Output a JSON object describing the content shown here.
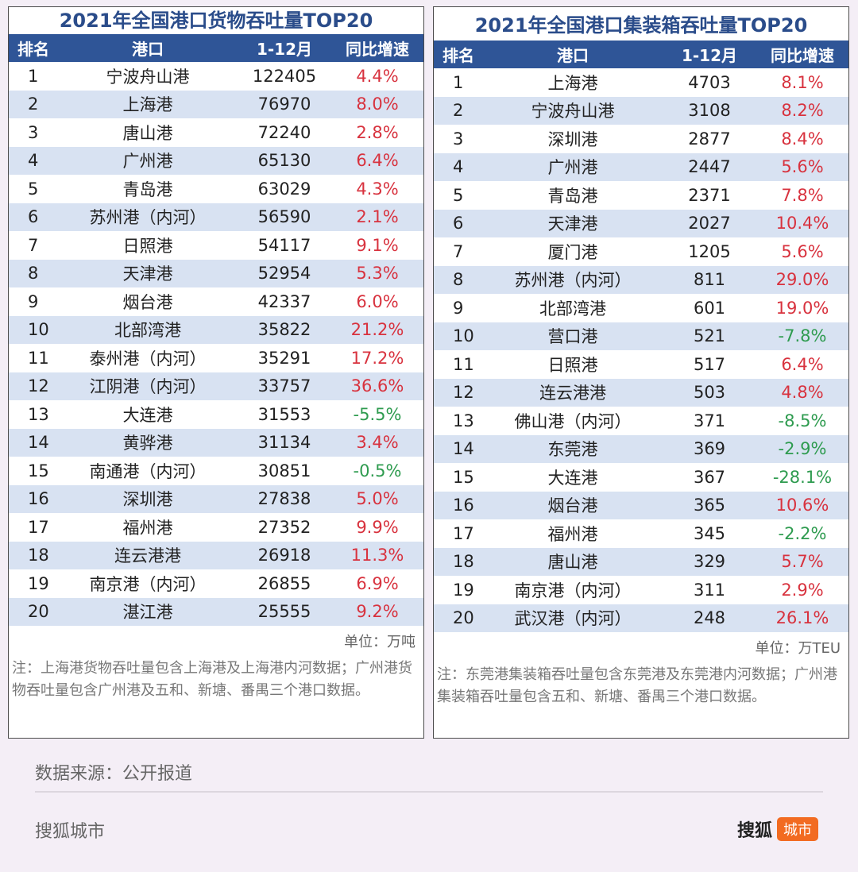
{
  "left": {
    "title": "2021年全国港口货物吞吐量TOP20",
    "headers": [
      "排名",
      "港口",
      "1-12月",
      "同比增速"
    ],
    "rows": [
      [
        "1",
        "宁波舟山港",
        "122405",
        "4.4%"
      ],
      [
        "2",
        "上海港",
        "76970",
        "8.0%"
      ],
      [
        "3",
        "唐山港",
        "72240",
        "2.8%"
      ],
      [
        "4",
        "广州港",
        "65130",
        "6.4%"
      ],
      [
        "5",
        "青岛港",
        "63029",
        "4.3%"
      ],
      [
        "6",
        "苏州港（内河）",
        "56590",
        "2.1%"
      ],
      [
        "7",
        "日照港",
        "54117",
        "9.1%"
      ],
      [
        "8",
        "天津港",
        "52954",
        "5.3%"
      ],
      [
        "9",
        "烟台港",
        "42337",
        "6.0%"
      ],
      [
        "10",
        "北部湾港",
        "35822",
        "21.2%"
      ],
      [
        "11",
        "泰州港（内河）",
        "35291",
        "17.2%"
      ],
      [
        "12",
        "江阴港（内河）",
        "33757",
        "36.6%"
      ],
      [
        "13",
        "大连港",
        "31553",
        "-5.5%"
      ],
      [
        "14",
        "黄骅港",
        "31134",
        "3.4%"
      ],
      [
        "15",
        "南通港（内河）",
        "30851",
        "-0.5%"
      ],
      [
        "16",
        "深圳港",
        "27838",
        "5.0%"
      ],
      [
        "17",
        "福州港",
        "27352",
        "9.9%"
      ],
      [
        "18",
        "连云港港",
        "26918",
        "11.3%"
      ],
      [
        "19",
        "南京港（内河）",
        "26855",
        "6.9%"
      ],
      [
        "20",
        "湛江港",
        "25555",
        "9.2%"
      ]
    ],
    "unit": "单位：万吨",
    "note": "注：上海港货物吞吐量包含上海港及上海港内河数据；广州港货物吞吐量包含广州港及五和、新塘、番禺三个港口数据。"
  },
  "right": {
    "title": "2021年全国港口集装箱吞吐量TOP20",
    "headers": [
      "排名",
      "港口",
      "1-12月",
      "同比增速"
    ],
    "rows": [
      [
        "1",
        "上海港",
        "4703",
        "8.1%"
      ],
      [
        "2",
        "宁波舟山港",
        "3108",
        "8.2%"
      ],
      [
        "3",
        "深圳港",
        "2877",
        "8.4%"
      ],
      [
        "4",
        "广州港",
        "2447",
        "5.6%"
      ],
      [
        "5",
        "青岛港",
        "2371",
        "7.8%"
      ],
      [
        "6",
        "天津港",
        "2027",
        "10.4%"
      ],
      [
        "7",
        "厦门港",
        "1205",
        "5.6%"
      ],
      [
        "8",
        "苏州港（内河）",
        "811",
        "29.0%"
      ],
      [
        "9",
        "北部湾港",
        "601",
        "19.0%"
      ],
      [
        "10",
        "营口港",
        "521",
        "-7.8%"
      ],
      [
        "11",
        "日照港",
        "517",
        "6.4%"
      ],
      [
        "12",
        "连云港港",
        "503",
        "4.8%"
      ],
      [
        "13",
        "佛山港（内河）",
        "371",
        "-8.5%"
      ],
      [
        "14",
        "东莞港",
        "369",
        "-2.9%"
      ],
      [
        "15",
        "大连港",
        "367",
        "-28.1%"
      ],
      [
        "16",
        "烟台港",
        "365",
        "10.6%"
      ],
      [
        "17",
        "福州港",
        "345",
        "-2.2%"
      ],
      [
        "18",
        "唐山港",
        "329",
        "5.7%"
      ],
      [
        "19",
        "南京港（内河）",
        "311",
        "2.9%"
      ],
      [
        "20",
        "武汉港（内河）",
        "248",
        "26.1%"
      ]
    ],
    "unit": "单位：万TEU",
    "note": "注：东莞港集装箱吞吐量包含东莞港及东莞港内河数据；广州港集装箱吞吐量包含五和、新塘、番禺三个港口数据。"
  },
  "colors": {
    "header_bg": "#2f5597",
    "title": "#2a4c8a",
    "stripe": "#d8e2f2",
    "positive": "#d8323e",
    "negative": "#2e9b4f",
    "logo_tag": "#f26b21"
  },
  "footer": {
    "source": "数据来源：公开报道",
    "brand": "搜狐城市",
    "logo_main": "搜狐",
    "logo_tag": "城市"
  }
}
